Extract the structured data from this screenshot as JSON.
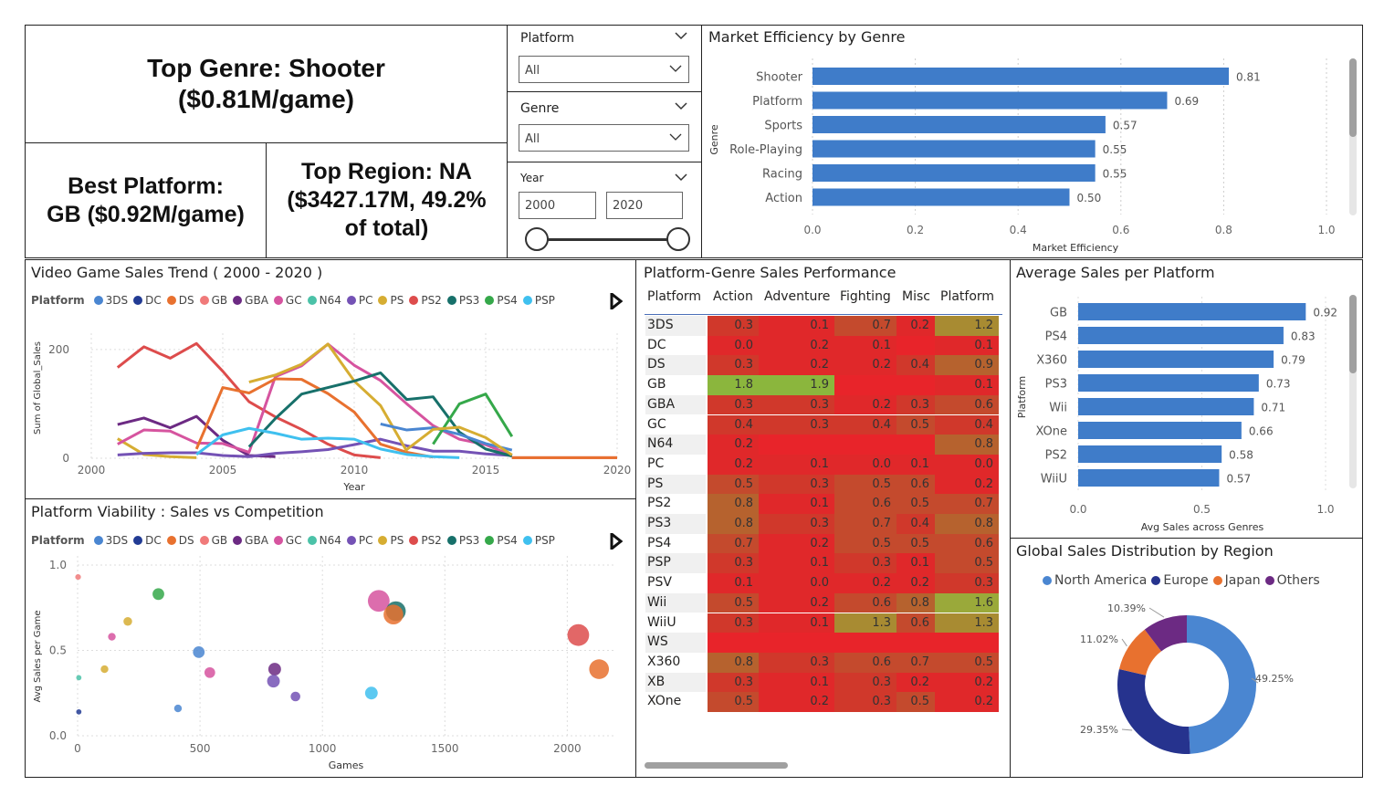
{
  "kpis": {
    "top_genre": "Top Genre: Shooter\n($0.81M/game)",
    "best_platform": "Best Platform:\nGB ($0.92M/game)",
    "top_region": "Top Region: NA\n($3427.17M, 49.2%\nof total)"
  },
  "slicers": {
    "platform": {
      "title": "Platform",
      "value": "All"
    },
    "genre": {
      "title": "Genre",
      "value": "All"
    },
    "year": {
      "title": "Year",
      "from": "2000",
      "to": "2020"
    }
  },
  "colors": {
    "bar": "#3f7cc9",
    "platforms": {
      "3DS": "#4a86d1",
      "DC": "#223b94",
      "DS": "#e8712f",
      "GB": "#f07a7a",
      "GBA": "#6c2a83",
      "GC": "#d6549f",
      "N64": "#4bc2a8",
      "PC": "#7452b5",
      "PS": "#d6ad32",
      "PS2": "#dd4c4c",
      "PS3": "#17706a",
      "PS4": "#35a84a",
      "PSP": "#3fc0ef"
    }
  },
  "legend_platforms": [
    "3DS",
    "DC",
    "DS",
    "GB",
    "GBA",
    "GC",
    "N64",
    "PC",
    "PS",
    "PS2",
    "PS3",
    "PS4",
    "PSP"
  ],
  "market_efficiency": {
    "title": "Market Efficiency by Genre",
    "xlabel": "Market Efficiency",
    "ylabel": "Genre",
    "categories": [
      "Shooter",
      "Platform",
      "Sports",
      "Role-Playing",
      "Racing",
      "Action"
    ],
    "values": [
      0.81,
      0.69,
      0.57,
      0.55,
      0.55,
      0.5
    ],
    "labels": [
      "0.81",
      "0.69",
      "0.57",
      "0.55",
      "0.55",
      "0.50"
    ],
    "ticks": [
      "0.0",
      "0.2",
      "0.4",
      "0.6",
      "0.8",
      "1.0"
    ],
    "xlim": [
      0,
      1.0
    ]
  },
  "sales_trend": {
    "title": "Video Game Sales Trend ( 2000 - 2020 )",
    "legend_label": "Platform",
    "ylabel": "Sum of Global_Sales",
    "xlabel": "Year",
    "xticks": [
      "2000",
      "2005",
      "2010",
      "2015",
      "2020"
    ],
    "yticks": [
      "0",
      "200"
    ],
    "xlim": [
      2000,
      2020
    ],
    "ylim": [
      0,
      230
    ],
    "series": [
      {
        "name": "PS2",
        "years": [
          2001,
          2002,
          2003,
          2004,
          2005,
          2006,
          2007,
          2008,
          2009,
          2010,
          2011
        ],
        "values": [
          167,
          205,
          184,
          211,
          160,
          104,
          76,
          53,
          26,
          6,
          1
        ]
      },
      {
        "name": "GBA",
        "years": [
          2001,
          2002,
          2003,
          2004,
          2005,
          2006,
          2007
        ],
        "values": [
          62,
          74,
          56,
          77,
          33,
          5,
          3
        ]
      },
      {
        "name": "PS",
        "years": [
          2001,
          2002,
          2003,
          2004
        ],
        "values": [
          36,
          7,
          3,
          1
        ]
      },
      {
        "name": "GC",
        "years": [
          2001,
          2002,
          2003,
          2004,
          2005,
          2006,
          2007,
          2008,
          2009,
          2010,
          2011,
          2012,
          2013,
          2014,
          2015,
          2016
        ],
        "values": [
          26,
          52,
          50,
          28,
          27,
          11,
          150,
          170,
          210,
          171,
          143,
          100,
          60,
          35,
          25,
          5
        ]
      },
      {
        "name": "PC",
        "years": [
          2001,
          2002,
          2003,
          2004,
          2005,
          2006,
          2007,
          2008,
          2009,
          2010,
          2011,
          2012,
          2013,
          2014,
          2015,
          2016
        ],
        "values": [
          6,
          9,
          10,
          10,
          5,
          3,
          9,
          12,
          16,
          25,
          35,
          23,
          13,
          13,
          8,
          5
        ]
      },
      {
        "name": "DS",
        "years": [
          2004,
          2005,
          2006,
          2007,
          2008,
          2009,
          2010,
          2011,
          2012,
          2013
        ],
        "values": [
          17,
          130,
          120,
          146,
          145,
          119,
          85,
          26,
          11,
          2
        ]
      },
      {
        "name": "PS",
        "years": [
          2006,
          2007,
          2008,
          2009,
          2010,
          2011,
          2012
        ],
        "values": [
          140,
          153,
          173,
          210,
          142,
          97,
          13
        ]
      },
      {
        "name": "PS3",
        "years": [
          2006,
          2007,
          2008,
          2009,
          2010,
          2011,
          2012,
          2013,
          2014,
          2015,
          2016
        ],
        "values": [
          21,
          73,
          118,
          130,
          142,
          157,
          108,
          113,
          48,
          17,
          4
        ]
      },
      {
        "name": "PSP",
        "years": [
          2004,
          2005,
          2006,
          2007,
          2008,
          2009,
          2010,
          2011,
          2012,
          2013,
          2014
        ],
        "values": [
          7,
          43,
          55,
          46,
          35,
          37,
          35,
          17,
          7,
          3,
          1
        ]
      },
      {
        "name": "3DS",
        "years": [
          2011,
          2012,
          2013,
          2014,
          2015,
          2016
        ],
        "values": [
          63,
          52,
          56,
          44,
          27,
          15
        ]
      },
      {
        "name": "PS4",
        "years": [
          2013,
          2014,
          2015,
          2016
        ],
        "values": [
          26,
          100,
          118,
          40
        ]
      },
      {
        "name": "PS",
        "years": [
          2012,
          2013,
          2014,
          2015,
          2016
        ],
        "values": [
          16,
          53,
          57,
          38,
          6
        ]
      },
      {
        "name": "PS2",
        "years": [
          2016,
          2017,
          2018,
          2019,
          2020
        ],
        "values": [
          1,
          1,
          1,
          1,
          1
        ]
      },
      {
        "name": "DS",
        "years": [
          2016,
          2017,
          2018,
          2019,
          2020
        ],
        "values": [
          1,
          1,
          1,
          1,
          1
        ]
      }
    ]
  },
  "heatmap": {
    "title": "Platform-Genre Sales Performance",
    "columns": [
      "Platform",
      "Action",
      "Adventure",
      "Fighting",
      "Misc",
      "Platform"
    ],
    "rows": [
      {
        "p": "3DS",
        "v": [
          "0.3",
          "0.1",
          "0.7",
          "0.2",
          "1.2"
        ]
      },
      {
        "p": "DC",
        "v": [
          "0.0",
          "0.2",
          "0.1",
          "",
          "0.1"
        ]
      },
      {
        "p": "DS",
        "v": [
          "0.3",
          "0.2",
          "0.2",
          "0.4",
          "0.9"
        ]
      },
      {
        "p": "GB",
        "v": [
          "1.8",
          "1.9",
          "",
          "",
          "0.1"
        ]
      },
      {
        "p": "GBA",
        "v": [
          "0.3",
          "0.3",
          "0.2",
          "0.3",
          "0.6"
        ]
      },
      {
        "p": "GC",
        "v": [
          "0.4",
          "0.3",
          "0.4",
          "0.5",
          "0.4"
        ]
      },
      {
        "p": "N64",
        "v": [
          "0.2",
          "",
          "",
          "",
          "0.8"
        ]
      },
      {
        "p": "PC",
        "v": [
          "0.2",
          "0.1",
          "0.0",
          "0.1",
          "0.0"
        ]
      },
      {
        "p": "PS",
        "v": [
          "0.5",
          "0.3",
          "0.5",
          "0.6",
          "0.2"
        ]
      },
      {
        "p": "PS2",
        "v": [
          "0.8",
          "0.1",
          "0.6",
          "0.5",
          "0.7"
        ]
      },
      {
        "p": "PS3",
        "v": [
          "0.8",
          "0.3",
          "0.7",
          "0.4",
          "0.8"
        ]
      },
      {
        "p": "PS4",
        "v": [
          "0.7",
          "0.2",
          "0.5",
          "0.5",
          "0.6"
        ]
      },
      {
        "p": "PSP",
        "v": [
          "0.3",
          "0.1",
          "0.3",
          "0.1",
          "0.5"
        ]
      },
      {
        "p": "PSV",
        "v": [
          "0.1",
          "0.0",
          "0.2",
          "0.2",
          "0.3"
        ]
      },
      {
        "p": "Wii",
        "v": [
          "0.5",
          "0.2",
          "0.6",
          "0.8",
          "1.6"
        ]
      },
      {
        "p": "WiiU",
        "v": [
          "0.3",
          "0.1",
          "1.3",
          "0.6",
          "1.3"
        ]
      },
      {
        "p": "WS",
        "v": [
          "",
          "",
          "",
          "",
          ""
        ]
      },
      {
        "p": "X360",
        "v": [
          "0.8",
          "0.3",
          "0.6",
          "0.7",
          "0.5"
        ]
      },
      {
        "p": "XB",
        "v": [
          "0.3",
          "0.1",
          "0.3",
          "0.2",
          "0.2"
        ]
      },
      {
        "p": "XOne",
        "v": [
          "0.5",
          "0.2",
          "0.3",
          "0.5",
          "0.2"
        ]
      }
    ]
  },
  "avg_sales": {
    "title": "Average Sales per Platform",
    "xlabel": "Avg Sales across Genres",
    "ylabel": "Platform",
    "categories": [
      "GB",
      "PS4",
      "X360",
      "PS3",
      "Wii",
      "XOne",
      "PS2",
      "WiiU"
    ],
    "values": [
      0.92,
      0.83,
      0.79,
      0.73,
      0.71,
      0.66,
      0.58,
      0.57
    ],
    "labels": [
      "0.92",
      "0.83",
      "0.79",
      "0.73",
      "0.71",
      "0.66",
      "0.58",
      "0.57"
    ],
    "ticks": [
      "0.0",
      "0.5",
      "1.0"
    ],
    "xlim": [
      0,
      1.0
    ]
  },
  "viability": {
    "title": "Platform Viability : Sales vs Competition",
    "legend_label": "Platform",
    "xlabel": "Games",
    "ylabel": "Avg Sales per Game",
    "xticks": [
      "0",
      "500",
      "1000",
      "1500",
      "2000"
    ],
    "yticks": [
      "0.0",
      "0.5",
      "1.0"
    ],
    "xlim": [
      0,
      2200
    ],
    "ylim": [
      0,
      1.0
    ],
    "points": [
      {
        "p": "GB",
        "games": 2,
        "avg": 0.93,
        "size": 0.1
      },
      {
        "p": "PS4",
        "games": 330,
        "avg": 0.83,
        "size": 0.4
      },
      {
        "p": "PS",
        "games": 205,
        "avg": 0.67,
        "size": 0.25
      },
      {
        "p": "GC",
        "games": 140,
        "avg": 0.58,
        "size": 0.2
      },
      {
        "p": "3DS",
        "games": 495,
        "avg": 0.49,
        "size": 0.4
      },
      {
        "p": "GC",
        "games": 540,
        "avg": 0.37,
        "size": 0.35
      },
      {
        "p": "PS",
        "games": 110,
        "avg": 0.39,
        "size": 0.2
      },
      {
        "p": "N64",
        "games": 5,
        "avg": 0.34,
        "size": 0.08
      },
      {
        "p": "GBA",
        "games": 805,
        "avg": 0.39,
        "size": 0.45
      },
      {
        "p": "PC",
        "games": 800,
        "avg": 0.32,
        "size": 0.45
      },
      {
        "p": "PC",
        "games": 890,
        "avg": 0.23,
        "size": 0.3
      },
      {
        "p": "DC",
        "games": 5,
        "avg": 0.14,
        "size": 0.08
      },
      {
        "p": "3DS",
        "games": 410,
        "avg": 0.16,
        "size": 0.2
      },
      {
        "p": "GC",
        "games": 1230,
        "avg": 0.79,
        "size": 0.9
      },
      {
        "p": "PS3",
        "games": 1300,
        "avg": 0.73,
        "size": 0.8
      },
      {
        "p": "DS",
        "games": 1290,
        "avg": 0.71,
        "size": 0.8
      },
      {
        "p": "PSP",
        "games": 1200,
        "avg": 0.25,
        "size": 0.45
      },
      {
        "p": "PS2",
        "games": 2045,
        "avg": 0.59,
        "size": 0.9
      },
      {
        "p": "DS",
        "games": 2130,
        "avg": 0.39,
        "size": 0.8
      }
    ]
  },
  "region": {
    "title": "Global Sales Distribution by Region",
    "slices": [
      {
        "name": "North America",
        "value": 49.25,
        "label": "49.25%",
        "color": "#4a86d1"
      },
      {
        "name": "Europe",
        "value": 29.35,
        "label": "29.35%",
        "color": "#26338e"
      },
      {
        "name": "Japan",
        "value": 11.02,
        "label": "11.02%",
        "color": "#e8712f"
      },
      {
        "name": "Others",
        "value": 10.39,
        "label": "10.39%",
        "color": "#6c2a83"
      }
    ]
  }
}
